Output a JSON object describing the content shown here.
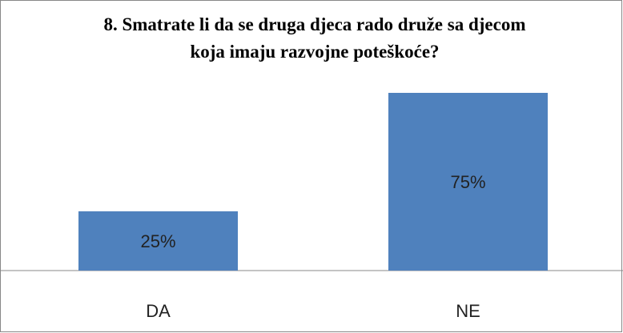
{
  "chart_data": {
    "type": "bar",
    "title": [
      "8. Smatrate li da se druga djeca rado druže sa djecom",
      "koja imaju razvojne poteškoće?"
    ],
    "categories": [
      "DA",
      "NE"
    ],
    "values": [
      25,
      75
    ],
    "value_labels": [
      "25%",
      "75%"
    ],
    "color": "#4f81bd"
  }
}
